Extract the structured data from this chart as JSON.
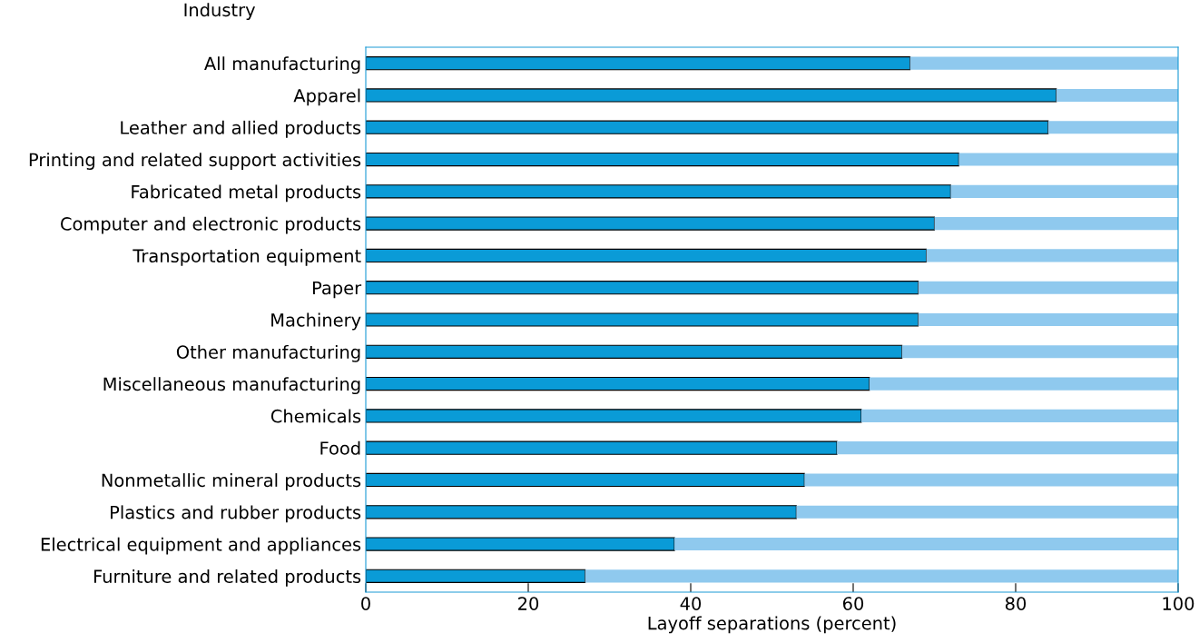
{
  "chart_data": {
    "type": "bar",
    "orientation": "horizontal",
    "stacked": true,
    "ylabel": "Industry",
    "xlabel": "Layoff separations (percent)",
    "categories": [
      "All manufacturing",
      "Apparel",
      "Leather and allied products",
      "Printing and related support activities",
      "Fabricated metal products",
      "Computer and electronic products",
      "Transportation equipment",
      "Paper",
      "Machinery",
      "Other manufacturing",
      "Miscellaneous manufacturing",
      "Chemicals",
      "Food",
      "Nonmetallic mineral products",
      "Plastics and rubber products",
      "Electrical equipment and appliances",
      "Furniture and related products"
    ],
    "series": [
      {
        "color": "#0a9bd7",
        "values": [
          67,
          85,
          84,
          73,
          72,
          70,
          69,
          68,
          68,
          66,
          62,
          61,
          58,
          54,
          53,
          38,
          27
        ]
      },
      {
        "color": "#8fc9ee",
        "values": [
          33,
          15,
          16,
          27,
          28,
          30,
          31,
          32,
          32,
          34,
          38,
          39,
          42,
          46,
          47,
          62,
          73
        ]
      }
    ],
    "xlim": [
      0,
      100
    ],
    "xticks": [
      0,
      20,
      40,
      60,
      80,
      100
    ],
    "grid": false,
    "legend": false
  }
}
